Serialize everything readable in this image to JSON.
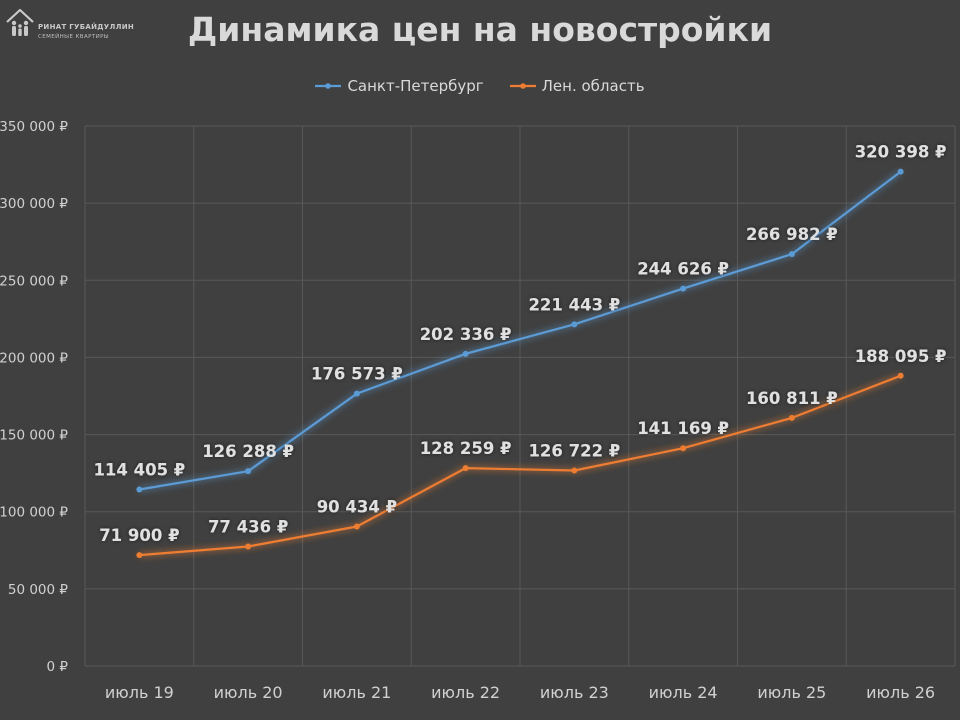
{
  "logo": {
    "name": "РИНАТ ГУБАЙДУЛЛИН",
    "tagline": "СЕМЕЙНЫЕ КВАРТИРЫ"
  },
  "colors": {
    "background": "#404040",
    "gridline": "#595959",
    "text": "#d9d9d9",
    "spb": "#5b9bd5",
    "lo": "#ed7d31"
  },
  "chart_data": {
    "type": "line",
    "title": "Динамика цен на новостройки",
    "xlabel": "",
    "ylabel": "",
    "categories": [
      "июль 19",
      "июль 20",
      "июль 21",
      "июль 22",
      "июль 23",
      "июль 24",
      "июль 25",
      "июль 26"
    ],
    "ylim": [
      0,
      350000
    ],
    "yticks": [
      0,
      50000,
      100000,
      150000,
      200000,
      250000,
      300000,
      350000
    ],
    "ytick_labels": [
      "0 ₽",
      "50 000 ₽",
      "100 000 ₽",
      "150 000 ₽",
      "200 000 ₽",
      "250 000 ₽",
      "300 000 ₽",
      "350 000 ₽"
    ],
    "grid": true,
    "legend_position": "top",
    "series": [
      {
        "name": "Санкт-Петербург",
        "color": "#5b9bd5",
        "values": [
          114405,
          126288,
          176573,
          202336,
          221443,
          244626,
          266982,
          320398
        ],
        "labels": [
          "114 405 ₽",
          "126 288 ₽",
          "176 573 ₽",
          "202 336 ₽",
          "221 443 ₽",
          "244 626 ₽",
          "266 982 ₽",
          "320 398 ₽"
        ]
      },
      {
        "name": "Лен. область",
        "color": "#ed7d31",
        "values": [
          71900,
          77436,
          90434,
          128259,
          126722,
          141169,
          160811,
          188095
        ],
        "labels": [
          "71 900 ₽",
          "77 436 ₽",
          "90 434 ₽",
          "128 259 ₽",
          "126 722 ₽",
          "141 169 ₽",
          "160 811 ₽",
          "188 095 ₽"
        ]
      }
    ]
  }
}
